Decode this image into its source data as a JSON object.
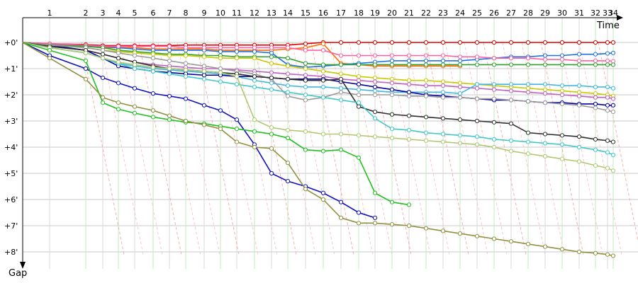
{
  "chart_data": {
    "type": "line",
    "xlabel": "Time",
    "ylabel": "Gap",
    "x_ticks": [
      "1",
      "2",
      "3",
      "4",
      "5",
      "6",
      "7",
      "8",
      "9",
      "10",
      "11",
      "12",
      "13",
      "14",
      "15",
      "16",
      "17",
      "18",
      "19",
      "20",
      "21",
      "22",
      "23",
      "24",
      "25",
      "26",
      "27",
      "28",
      "29",
      "30",
      "31",
      "32",
      "33",
      "34"
    ],
    "y_ticks": [
      "+0'",
      "+1'",
      "+2'",
      "+3'",
      "+4'",
      "+5'",
      "+6'",
      "+7'",
      "+8'"
    ],
    "ylim": [
      0,
      8
    ],
    "grid": true,
    "series": [
      {
        "color": "#e00000",
        "values": [
          0,
          0.05,
          0.08,
          0.12,
          0.12,
          0.12,
          0.12,
          0.12,
          0.1,
          0.1,
          0.1,
          0.1,
          0.1,
          0.1,
          0.1,
          0.05,
          0.0,
          0,
          0,
          0,
          0,
          0,
          0,
          0,
          0,
          0,
          0,
          0,
          0,
          0,
          0,
          0,
          0,
          0,
          0
        ]
      },
      {
        "color": "#ff6a00",
        "values": [
          0,
          0.1,
          0.15,
          0.2,
          0.2,
          0.2,
          0.25,
          0.25,
          0.25,
          0.25,
          0.3,
          0.3,
          0.3,
          0.3,
          0.25,
          0.2,
          0.05,
          0.8,
          0.85,
          0.9,
          0.9,
          0.9,
          0.9,
          0.9,
          0.9
        ]
      },
      {
        "color": "#2070e0",
        "values": [
          0,
          0.08,
          0.12,
          0.15,
          0.2,
          0.25,
          0.3,
          0.3,
          0.3,
          0.3,
          0.35,
          0.35,
          0.35,
          0.4,
          0.85,
          0.95,
          0.9,
          0.85,
          0.8,
          0.75,
          0.7,
          0.7,
          0.7,
          0.7,
          0.7,
          0.65,
          0.6,
          0.55,
          0.55,
          0.5,
          0.5,
          0.45,
          0.45,
          0.42,
          0.4
        ]
      },
      {
        "color": "#ff60a0",
        "values": [
          0,
          0.05,
          0.1,
          0.15,
          0.15,
          0.15,
          0.15,
          0.15,
          0.2,
          0.2,
          0.2,
          0.2,
          0.2,
          0.2,
          0.2,
          0.3,
          0.3,
          0.5,
          0.5,
          0.5,
          0.5,
          0.5,
          0.5,
          0.5,
          0.55,
          0.55,
          0.6,
          0.6,
          0.6,
          0.65,
          0.65,
          0.7,
          0.7,
          0.7,
          0.72
        ]
      },
      {
        "color": "#30a030",
        "values": [
          0,
          0.1,
          0.15,
          0.2,
          0.3,
          0.35,
          0.4,
          0.45,
          0.45,
          0.5,
          0.5,
          0.55,
          0.55,
          0.55,
          0.6,
          0.8,
          0.85,
          0.85,
          0.85,
          0.85,
          0.85,
          0.85,
          0.85,
          0.85,
          0.85,
          0.85,
          0.85,
          0.85,
          0.85,
          0.85,
          0.85,
          0.85,
          0.85,
          0.85,
          0.85
        ]
      },
      {
        "color": "#c8c800",
        "values": [
          0,
          0.1,
          0.2,
          0.3,
          0.35,
          0.4,
          0.45,
          0.5,
          0.5,
          0.55,
          0.6,
          0.6,
          0.6,
          0.8,
          0.9,
          1.0,
          1.1,
          1.2,
          1.3,
          1.35,
          1.4,
          1.45,
          1.45,
          1.5,
          1.55,
          1.6,
          1.65,
          1.7,
          1.75,
          1.8,
          1.85,
          1.9,
          1.95,
          2.0,
          2.05
        ]
      },
      {
        "color": "#c060c0",
        "values": [
          0,
          0.15,
          0.3,
          0.45,
          0.6,
          0.75,
          0.85,
          0.9,
          0.95,
          1.0,
          1.0,
          1.05,
          1.1,
          1.15,
          1.2,
          1.25,
          1.3,
          1.4,
          1.45,
          1.5,
          1.55,
          1.6,
          1.65,
          1.65,
          1.7,
          1.75,
          1.8,
          1.85,
          1.9,
          1.95,
          2.0,
          2.05,
          2.1,
          2.1,
          2.15
        ]
      },
      {
        "color": "#40b8e0",
        "values": [
          0,
          0.2,
          0.4,
          0.6,
          0.8,
          0.9,
          1.0,
          1.05,
          1.1,
          1.15,
          1.2,
          1.3,
          1.45,
          1.55,
          1.65,
          1.7,
          1.7,
          1.75,
          1.8,
          1.85,
          1.9,
          1.9,
          1.9,
          1.9,
          1.95,
          1.6,
          1.6,
          1.6,
          1.6,
          1.6,
          1.65,
          1.65,
          1.7,
          1.7,
          1.75
        ]
      },
      {
        "color": "#0000a0",
        "values": [
          0,
          0.1,
          0.3,
          0.6,
          0.9,
          1.0,
          1.1,
          1.15,
          1.2,
          1.25,
          1.25,
          1.3,
          1.3,
          1.35,
          1.4,
          1.4,
          1.4,
          1.5,
          1.6,
          1.7,
          1.8,
          1.9,
          2.0,
          2.05,
          2.1,
          2.15,
          2.2,
          2.2,
          2.25,
          2.3,
          2.3,
          2.35,
          2.35,
          2.4,
          2.4
        ]
      },
      {
        "color": "#9a9a9a",
        "values": [
          0,
          0.1,
          0.2,
          0.3,
          0.4,
          0.5,
          0.6,
          0.7,
          0.8,
          0.9,
          1.0,
          1.1,
          1.2,
          1.4,
          2.05,
          2.2,
          2.1,
          1.9,
          2.0,
          2.0,
          2.0,
          2.05,
          2.05,
          2.1,
          2.1,
          2.15,
          2.15,
          2.2,
          2.25,
          2.3,
          2.35,
          2.4,
          2.5,
          2.6,
          2.65
        ]
      },
      {
        "color": "#303030",
        "values": [
          0,
          0.15,
          0.3,
          0.45,
          0.6,
          0.75,
          0.9,
          1.0,
          1.05,
          1.1,
          1.15,
          1.2,
          1.3,
          1.35,
          1.4,
          1.45,
          1.45,
          1.4,
          2.45,
          2.65,
          2.75,
          2.8,
          2.85,
          2.9,
          2.95,
          3.0,
          3.05,
          3.1,
          3.45,
          3.5,
          3.55,
          3.6,
          3.7,
          3.75,
          3.8
        ]
      },
      {
        "color": "#40c8c8",
        "values": [
          0,
          0.2,
          0.4,
          0.6,
          0.8,
          1.0,
          1.1,
          1.2,
          1.3,
          1.4,
          1.5,
          1.6,
          1.7,
          1.8,
          1.9,
          2.0,
          2.1,
          2.2,
          2.3,
          2.9,
          3.3,
          3.35,
          3.45,
          3.5,
          3.55,
          3.6,
          3.7,
          3.75,
          3.8,
          3.85,
          3.9,
          4.0,
          4.1,
          4.2,
          4.3
        ]
      },
      {
        "color": "#b0c870",
        "values": [
          0,
          0.2,
          0.4,
          0.6,
          0.75,
          0.85,
          0.95,
          1.0,
          1.05,
          1.1,
          1.15,
          1.3,
          2.95,
          3.25,
          3.35,
          3.4,
          3.5,
          3.5,
          3.55,
          3.6,
          3.65,
          3.7,
          3.75,
          3.8,
          3.85,
          3.9,
          4.0,
          4.15,
          4.25,
          4.35,
          4.45,
          4.55,
          4.7,
          4.8,
          4.9
        ]
      },
      {
        "color": "#1010c0",
        "values": [
          0,
          0.5,
          1.0,
          1.35,
          1.55,
          1.75,
          1.95,
          2.05,
          2.15,
          2.4,
          2.6,
          2.95,
          3.9,
          5.0,
          5.3,
          5.5,
          5.75,
          6.1,
          6.5,
          6.7
        ]
      },
      {
        "color": "#20c020",
        "values": [
          0,
          0.3,
          0.7,
          2.3,
          2.55,
          2.7,
          2.85,
          2.95,
          3.05,
          3.1,
          3.2,
          3.3,
          3.4,
          3.5,
          3.65,
          4.1,
          4.15,
          4.1,
          4.4,
          5.75,
          6.1,
          6.2
        ]
      },
      {
        "color": "#909040",
        "values": [
          0,
          0.6,
          1.4,
          2.1,
          2.3,
          2.45,
          2.6,
          2.8,
          3.0,
          3.15,
          3.3,
          3.8,
          4.0,
          4.05,
          4.6,
          5.6,
          6.0,
          6.7,
          6.9,
          6.9,
          6.95,
          7.0,
          7.1,
          7.2,
          7.3,
          7.4,
          7.5,
          7.6,
          7.7,
          7.8,
          7.9,
          8.0,
          8.05,
          8.1,
          8.15
        ]
      }
    ]
  }
}
